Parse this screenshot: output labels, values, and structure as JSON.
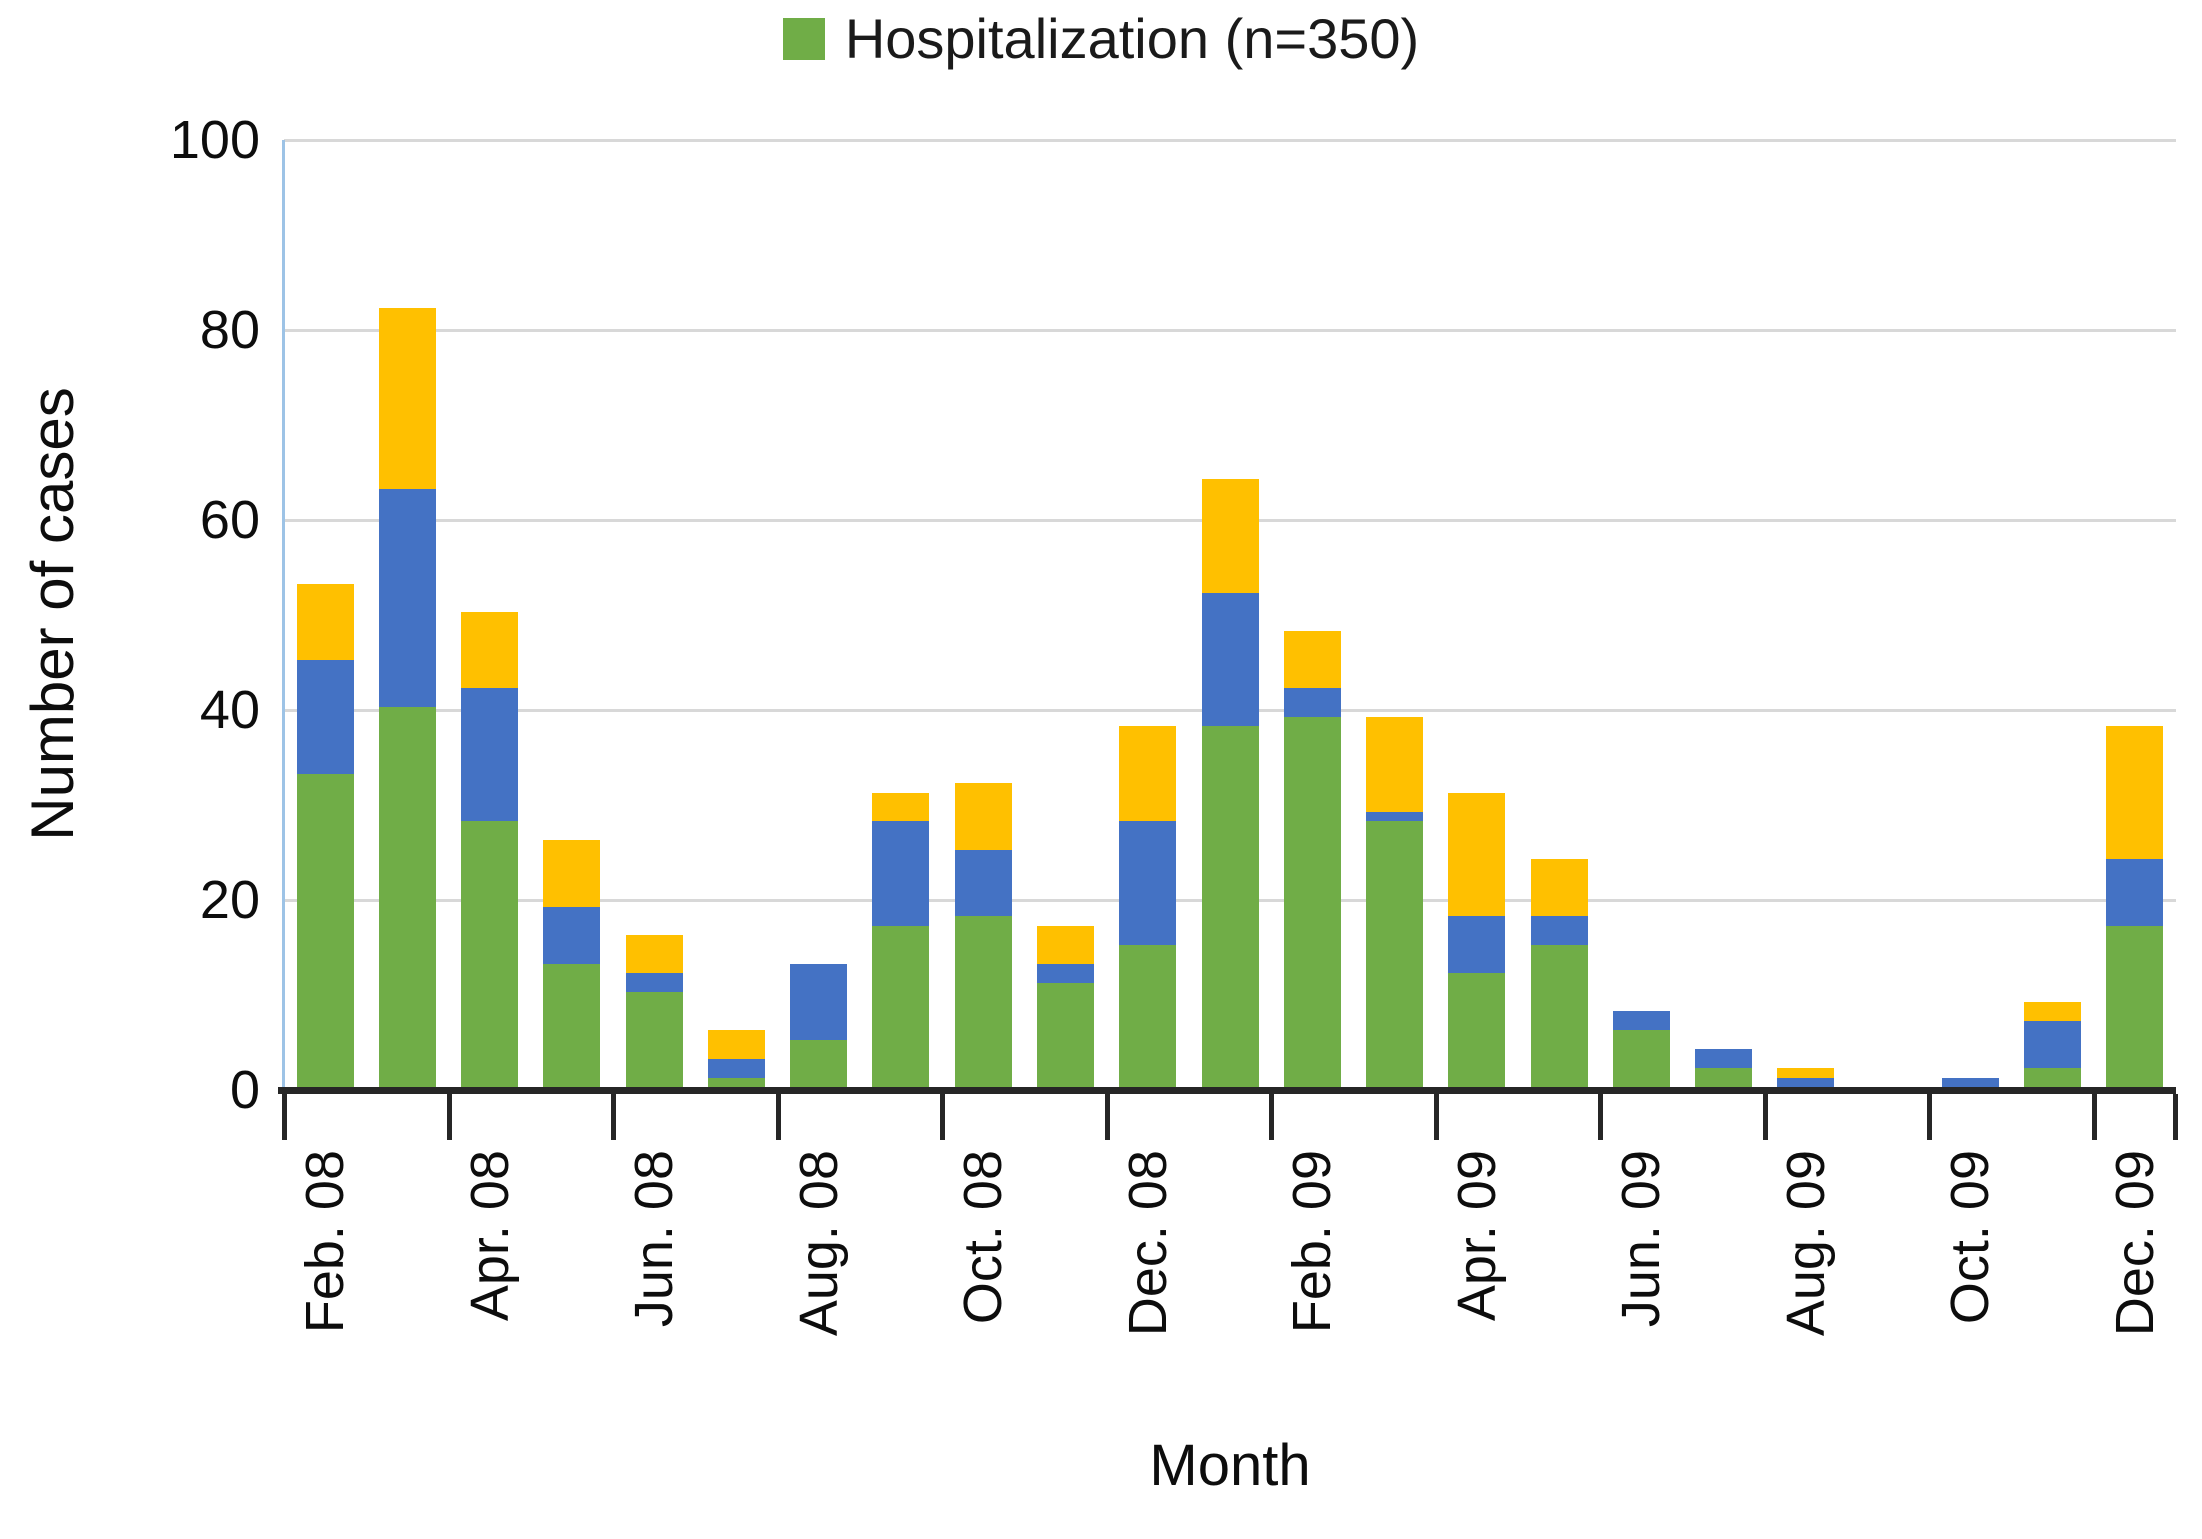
{
  "legend": {
    "label": "Hospitalization (n=350)",
    "swatch_color": "#70ad47"
  },
  "y_axis": {
    "title": "Number of cases",
    "tick_labels": [
      "0",
      "20",
      "40",
      "60",
      "80",
      "100"
    ],
    "min": 0,
    "max": 100,
    "tick_step": 20
  },
  "x_axis": {
    "title": "Month",
    "visible_tick_labels": [
      "Feb. 08",
      "Apr. 08",
      "Jun. 08",
      "Aug. 08",
      "Oct. 08",
      "Dec. 08",
      "Feb. 09",
      "Apr. 09",
      "Jun. 09",
      "Aug. 09",
      "Oct. 09",
      "Dec. 09"
    ]
  },
  "chart_data": {
    "type": "bar",
    "stacked": true,
    "title": "",
    "xlabel": "Month",
    "ylabel": "Number of cases",
    "ylim": [
      0,
      100
    ],
    "grid": true,
    "legend_position": "top-center",
    "categories": [
      "Feb. 08",
      "Mar. 08",
      "Apr. 08",
      "May 08",
      "Jun. 08",
      "Jul. 08",
      "Aug. 08",
      "Sep. 08",
      "Oct. 08",
      "Nov. 08",
      "Dec. 08",
      "Jan. 09",
      "Feb. 09",
      "Mar. 09",
      "Apr. 09",
      "May 09",
      "Jun. 09",
      "Jul. 09",
      "Aug. 09",
      "Sep. 09",
      "Oct. 09",
      "Nov. 09",
      "Dec. 09"
    ],
    "label_every": 2,
    "series": [
      {
        "id": "hospitalization",
        "legend_label": "Hospitalization (n=350)",
        "color": "#70ad47",
        "values": [
          33,
          40,
          28,
          13,
          10,
          1,
          5,
          17,
          18,
          11,
          15,
          38,
          39,
          28,
          12,
          15,
          6,
          2,
          0,
          0,
          0,
          2,
          17
        ]
      },
      {
        "id": "series-blue",
        "legend_label": "",
        "color": "#4472c4",
        "values": [
          12,
          23,
          14,
          6,
          2,
          2,
          8,
          11,
          7,
          2,
          13,
          14,
          3,
          1,
          6,
          3,
          2,
          2,
          1,
          0,
          1,
          5,
          7
        ]
      },
      {
        "id": "series-yellow",
        "legend_label": "",
        "color": "#ffc000",
        "values": [
          8,
          19,
          8,
          7,
          4,
          3,
          0,
          3,
          7,
          4,
          10,
          12,
          6,
          10,
          13,
          6,
          0,
          0,
          1,
          0,
          0,
          2,
          14
        ]
      }
    ],
    "stack_totals": [
      53,
      82,
      50,
      26,
      16,
      6,
      13,
      31,
      32,
      17,
      38,
      64,
      48,
      39,
      31,
      24,
      8,
      4,
      2,
      0,
      1,
      9,
      38
    ]
  }
}
